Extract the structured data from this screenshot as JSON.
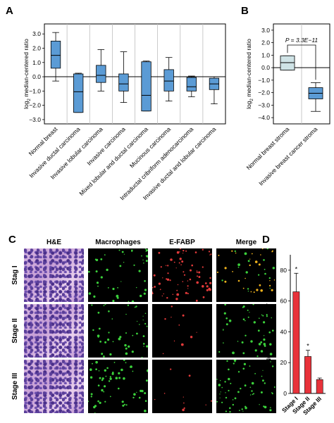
{
  "panels": {
    "A": {
      "letter": "A",
      "ylabel_pre": "log",
      "ylabel_sub": "2",
      "ylabel_post": " median-centered ratio",
      "chart_data": {
        "type": "boxplot",
        "ylim": [
          -3.3,
          3.7
        ],
        "yticks": [
          "3.0",
          "2.0",
          "1.0",
          "0.0",
          "−1.0",
          "−2.0",
          "−3.0"
        ],
        "ytick_values": [
          3,
          2,
          1,
          0,
          -1,
          -2,
          -3
        ],
        "categories": [
          "Normal breast",
          "Invasive ductal carcinoma",
          "Invasive lobular carcinoma",
          "Invasive carcinoma",
          "Mixed lobular and ductal carcinoma",
          "Mucinous carcinoma",
          "Intraductal cribriform adenocarcinoma",
          "Invasive ductal and lobular carcinoma"
        ],
        "boxes": [
          {
            "min": -0.3,
            "q1": 0.6,
            "median": 1.5,
            "q3": 2.5,
            "max": 3.1
          },
          {
            "min": -2.5,
            "q1": -2.5,
            "median": -1.05,
            "q3": 0.2,
            "max": 0.25
          },
          {
            "min": -1.0,
            "q1": -0.4,
            "median": 0.1,
            "q3": 0.8,
            "max": 1.9
          },
          {
            "min": -1.8,
            "q1": -1.0,
            "median": -0.5,
            "q3": 0.2,
            "max": 1.75
          },
          {
            "min": -2.4,
            "q1": -2.4,
            "median": -1.3,
            "q3": 1.05,
            "max": 1.1
          },
          {
            "min": -1.7,
            "q1": -1.0,
            "median": -0.3,
            "q3": 0.5,
            "max": 1.35
          },
          {
            "min": -1.4,
            "q1": -1.0,
            "median": -0.7,
            "q3": -0.05,
            "max": 0.05
          },
          {
            "min": -1.9,
            "q1": -0.9,
            "median": -0.5,
            "q3": -0.1,
            "max": 0.0
          }
        ]
      }
    },
    "B": {
      "letter": "B",
      "ylabel_pre": "log",
      "ylabel_sub": "2",
      "ylabel_post": " median-centered ratio",
      "pvalue": "P = 3.3E−11",
      "chart_data": {
        "type": "boxplot",
        "ylim": [
          -4.5,
          3.5
        ],
        "yticks": [
          "3.0",
          "2.0",
          "1.0",
          "0.0",
          "−1.0",
          "−2.0",
          "−3.0",
          "−4.0"
        ],
        "ytick_values": [
          3,
          2,
          1,
          0,
          -1,
          -2,
          -3,
          -4
        ],
        "categories": [
          "Normal breast stroma",
          "Invasive breast cancer stroma"
        ],
        "boxes": [
          {
            "min": -0.2,
            "q1": -0.2,
            "median": 0.4,
            "q3": 0.95,
            "max": 0.95
          },
          {
            "min": -3.5,
            "q1": -2.5,
            "median": -2.05,
            "q3": -1.6,
            "max": -1.2
          }
        ]
      }
    },
    "C": {
      "letter": "C",
      "columns": [
        "H&E",
        "Macrophages",
        "E-FABP",
        "Merge"
      ],
      "rows": [
        "Stag I",
        "Stage II",
        "Stage III"
      ]
    },
    "D": {
      "letter": "D",
      "ylabel_pre": "Numbers of E-FABP",
      "ylabel_sup": "+",
      "ylabel_post": " TAMs",
      "chart_data": {
        "type": "bar",
        "categories": [
          "Stage I",
          "Stage II",
          "Stage III"
        ],
        "values": [
          66,
          24,
          9
        ],
        "errors": [
          12,
          4,
          1
        ],
        "significance": [
          "*",
          "*",
          ""
        ],
        "ylim": [
          0,
          90
        ],
        "yticks": [
          "0",
          "20",
          "40",
          "60",
          "80"
        ],
        "ytick_values": [
          0,
          20,
          40,
          60,
          80
        ]
      }
    }
  },
  "colors": {
    "box_fill": "#5b9bd5",
    "box_fill_light": "#cfe3e6",
    "bar_fill": "#e8323a",
    "grid_divider": "#bdbdbd"
  }
}
